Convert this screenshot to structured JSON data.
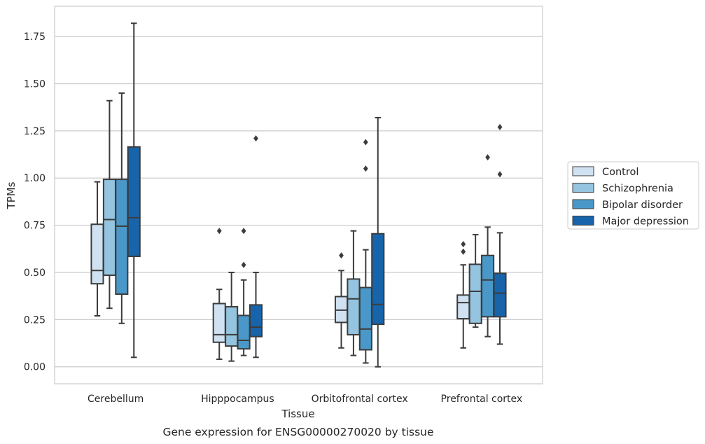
{
  "chart_data": {
    "type": "box",
    "title": "",
    "caption": "Gene expression for ENSG00000270020 by tissue",
    "xlabel": "Tissue",
    "ylabel": "TPMs",
    "ylim": [
      -0.09,
      1.91
    ],
    "yticks": [
      0.0,
      0.25,
      0.5,
      0.75,
      1.0,
      1.25,
      1.5,
      1.75
    ],
    "ytick_labels": [
      "0.00",
      "0.25",
      "0.50",
      "0.75",
      "1.00",
      "1.25",
      "1.50",
      "1.75"
    ],
    "grid": true,
    "legend_position": "right",
    "categories": [
      "Cerebellum",
      "Hipppocampus",
      "Orbitofrontal cortex",
      "Prefrontal cortex"
    ],
    "series": [
      {
        "name": "Control",
        "color": "#d0e1f2",
        "boxes": [
          {
            "whisker_low": 0.27,
            "q1": 0.44,
            "median": 0.51,
            "q3": 0.755,
            "whisker_high": 0.98,
            "outliers": []
          },
          {
            "whisker_low": 0.04,
            "q1": 0.13,
            "median": 0.17,
            "q3": 0.335,
            "whisker_high": 0.41,
            "outliers": [
              0.72
            ]
          },
          {
            "whisker_low": 0.1,
            "q1": 0.235,
            "median": 0.3,
            "q3": 0.372,
            "whisker_high": 0.51,
            "outliers": [
              0.59
            ]
          },
          {
            "whisker_low": 0.1,
            "q1": 0.255,
            "median": 0.34,
            "q3": 0.38,
            "whisker_high": 0.54,
            "outliers": [
              0.61,
              0.65
            ]
          }
        ]
      },
      {
        "name": "Schizophrenia",
        "color": "#94c4df",
        "boxes": [
          {
            "whisker_low": 0.31,
            "q1": 0.485,
            "median": 0.78,
            "q3": 0.993,
            "whisker_high": 1.41,
            "outliers": []
          },
          {
            "whisker_low": 0.03,
            "q1": 0.11,
            "median": 0.17,
            "q3": 0.318,
            "whisker_high": 0.5,
            "outliers": []
          },
          {
            "whisker_low": 0.06,
            "q1": 0.17,
            "median": 0.36,
            "q3": 0.465,
            "whisker_high": 0.72,
            "outliers": []
          },
          {
            "whisker_low": 0.21,
            "q1": 0.23,
            "median": 0.4,
            "q3": 0.543,
            "whisker_high": 0.7,
            "outliers": []
          }
        ]
      },
      {
        "name": "Bipolar disorder",
        "color": "#4a98c9",
        "boxes": [
          {
            "whisker_low": 0.23,
            "q1": 0.385,
            "median": 0.745,
            "q3": 0.993,
            "whisker_high": 1.45,
            "outliers": []
          },
          {
            "whisker_low": 0.06,
            "q1": 0.095,
            "median": 0.14,
            "q3": 0.272,
            "whisker_high": 0.46,
            "outliers": [
              0.54,
              0.72
            ]
          },
          {
            "whisker_low": 0.02,
            "q1": 0.09,
            "median": 0.2,
            "q3": 0.42,
            "whisker_high": 0.62,
            "outliers": [
              1.05,
              1.19
            ]
          },
          {
            "whisker_low": 0.16,
            "q1": 0.265,
            "median": 0.46,
            "q3": 0.59,
            "whisker_high": 0.74,
            "outliers": [
              1.11
            ]
          }
        ]
      },
      {
        "name": "Major depression",
        "color": "#1764ab",
        "boxes": [
          {
            "whisker_low": 0.05,
            "q1": 0.585,
            "median": 0.79,
            "q3": 1.165,
            "whisker_high": 1.82,
            "outliers": []
          },
          {
            "whisker_low": 0.05,
            "q1": 0.16,
            "median": 0.21,
            "q3": 0.328,
            "whisker_high": 0.5,
            "outliers": [
              1.21
            ]
          },
          {
            "whisker_low": 0.0,
            "q1": 0.225,
            "median": 0.33,
            "q3": 0.705,
            "whisker_high": 1.32,
            "outliers": []
          },
          {
            "whisker_low": 0.12,
            "q1": 0.265,
            "median": 0.39,
            "q3": 0.495,
            "whisker_high": 0.71,
            "outliers": [
              1.02,
              1.27
            ]
          }
        ]
      }
    ]
  }
}
